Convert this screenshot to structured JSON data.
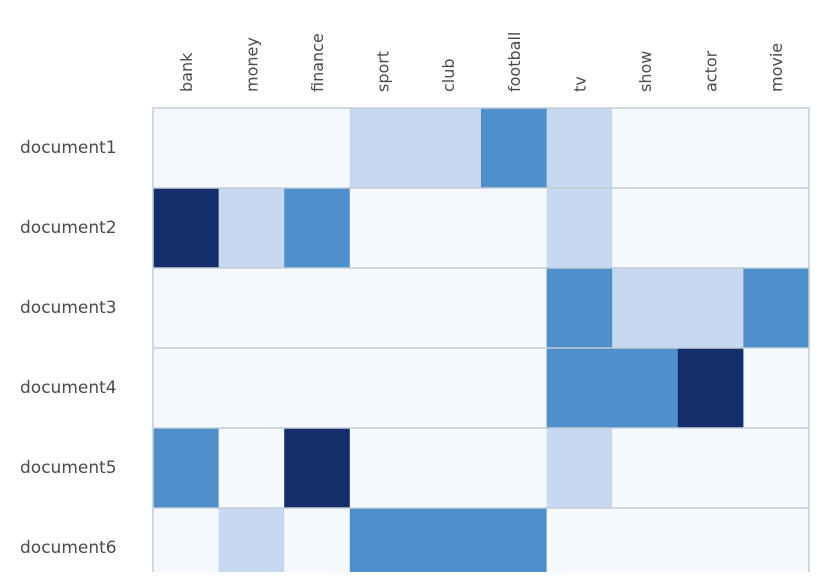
{
  "chart_data": {
    "type": "heatmap",
    "title": "",
    "xlabel": "",
    "ylabel": "",
    "columns": [
      "bank",
      "money",
      "finance",
      "sport",
      "club",
      "football",
      "tv",
      "show",
      "actor",
      "movie"
    ],
    "rows": [
      "document1",
      "document2",
      "document3",
      "document4",
      "document5",
      "document6"
    ],
    "values": [
      [
        0,
        0,
        0,
        1,
        1,
        2,
        1,
        0,
        0,
        0
      ],
      [
        3,
        1,
        2,
        0,
        0,
        0,
        1,
        0,
        0,
        0
      ],
      [
        0,
        0,
        0,
        0,
        0,
        0,
        2,
        1,
        1,
        2
      ],
      [
        0,
        0,
        0,
        0,
        0,
        0,
        2,
        2,
        3,
        0
      ],
      [
        2,
        0,
        3,
        0,
        0,
        0,
        1,
        0,
        0,
        0
      ],
      [
        0,
        1,
        0,
        2,
        2,
        2,
        0,
        0,
        0,
        0
      ]
    ],
    "value_range": [
      0,
      3
    ],
    "colorscale": [
      "#f5f9fe",
      "#c6d9f1",
      "#4f8fcb",
      "#132e6b"
    ],
    "grid": true,
    "legend": "none"
  }
}
